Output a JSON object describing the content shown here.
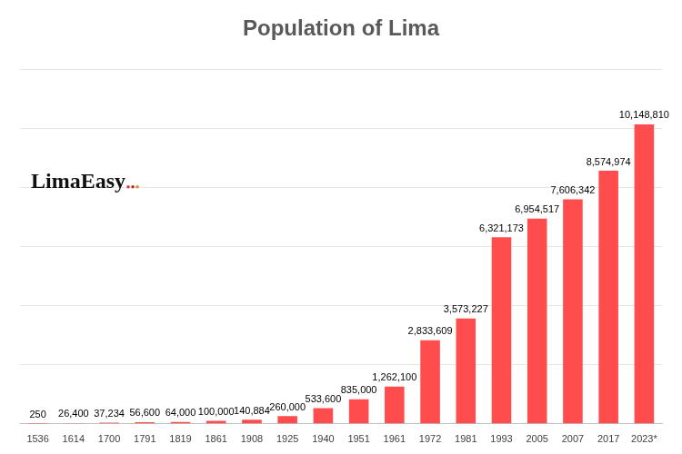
{
  "chart_data": {
    "type": "bar",
    "title": "Population of Lima",
    "annotations": [
      "LimaEasy"
    ],
    "categories": [
      "1536",
      "1614",
      "1700",
      "1791",
      "1819",
      "1861",
      "1908",
      "1925",
      "1940",
      "1951",
      "1961",
      "1972",
      "1981",
      "1993",
      "2005",
      "2007",
      "2017",
      "2023*"
    ],
    "values": [
      250,
      26400,
      37234,
      56600,
      64000,
      100000,
      140884,
      260000,
      533600,
      835000,
      1262100,
      2833609,
      3573227,
      6321173,
      6954517,
      7606342,
      8574974,
      10148810
    ],
    "value_labels": [
      "250",
      "26,400",
      "37,234",
      "56,600",
      "64,000",
      "100,000",
      "140,884",
      "260,000",
      "533,600",
      "835,000",
      "1,262,100",
      "2,833,609",
      "3,573,227",
      "6,321,173",
      "6,954,517",
      "7,606,342",
      "8,574,974",
      "10,148,810"
    ],
    "color": "#ff4d4d",
    "ylim": [
      0,
      12000000
    ],
    "yticks": [
      0,
      2000000,
      4000000,
      6000000,
      8000000,
      10000000,
      12000000
    ],
    "grid": true,
    "data_labels": true,
    "tick_labels": "x"
  }
}
